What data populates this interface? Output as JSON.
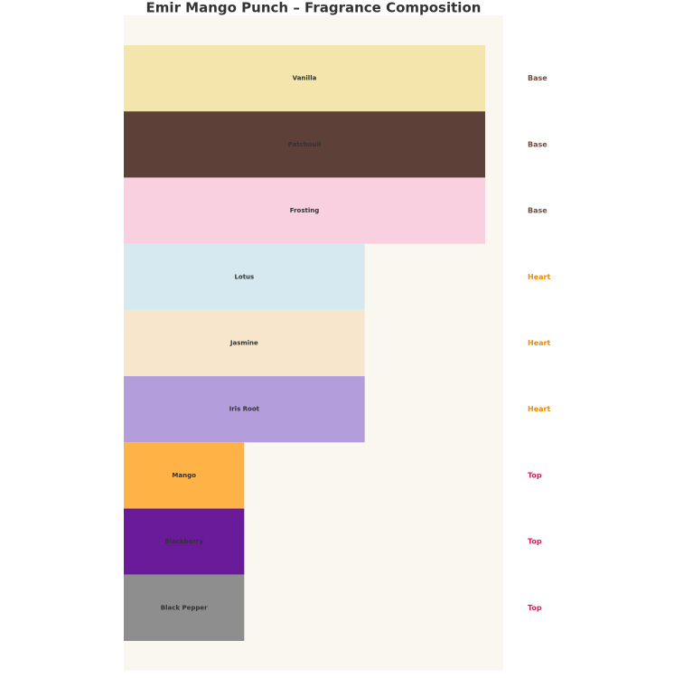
{
  "chart_data": {
    "type": "hbar",
    "title": "Emir Mango Punch – Fragrance Composition",
    "categories": [
      "Vanilla",
      "Patchouli",
      "Frosting",
      "Lotus",
      "Jasmine",
      "Iris Root",
      "Mango",
      "Blackberry",
      "Black Pepper"
    ],
    "values": [
      3,
      3,
      3,
      2,
      2,
      2,
      1,
      1,
      1
    ],
    "colors": [
      "#f3e5ab",
      "#5d4037",
      "#f8d0e0",
      "#d6e9f0",
      "#f7e6cc",
      "#b39ddb",
      "#ffb347",
      "#6a1b9a",
      "#8e8e8e"
    ],
    "tiers": [
      "Base",
      "Base",
      "Base",
      "Heart",
      "Heart",
      "Heart",
      "Top",
      "Top",
      "Top"
    ],
    "tier_colors": {
      "Base": "#6d4c41",
      "Heart": "#ef8c00",
      "Top": "#d81b60"
    },
    "xlim": [
      0,
      3.15
    ]
  }
}
